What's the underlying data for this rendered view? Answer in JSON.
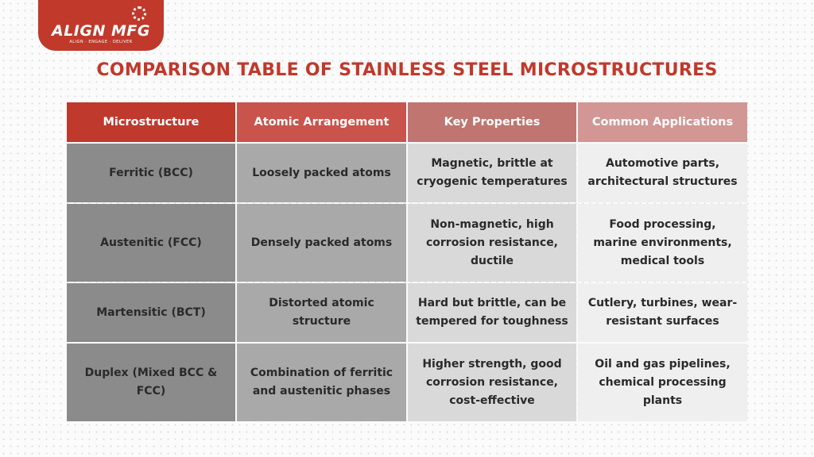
{
  "logo": {
    "name": "ALIGN MFG",
    "tagline": "ALIGN · ENGAGE · DELIVER"
  },
  "title": "COMPARISON TABLE OF STAINLESS STEEL MICROSTRUCTURES",
  "colors": {
    "brand": "#c0392b"
  },
  "table": {
    "headers": [
      "Microstructure",
      "Atomic Arrangement",
      "Key Properties",
      "Common Applications"
    ],
    "rows": [
      [
        "Ferritic (BCC)",
        "Loosely packed atoms",
        "Magnetic, brittle at cryogenic temperatures",
        "Automotive parts, architectural structures"
      ],
      [
        "Austenitic (FCC)",
        "Densely packed atoms",
        "Non-magnetic, high corrosion resistance, ductile",
        "Food processing, marine environments, medical tools"
      ],
      [
        "Martensitic (BCT)",
        "Distorted atomic structure",
        "Hard but brittle, can be tempered for toughness",
        "Cutlery, turbines, wear-resistant surfaces"
      ],
      [
        "Duplex (Mixed BCC & FCC)",
        "Combination of ferritic and austenitic phases",
        "Higher strength, good corrosion resistance, cost-effective",
        "Oil and gas pipelines, chemical processing plants"
      ]
    ]
  }
}
